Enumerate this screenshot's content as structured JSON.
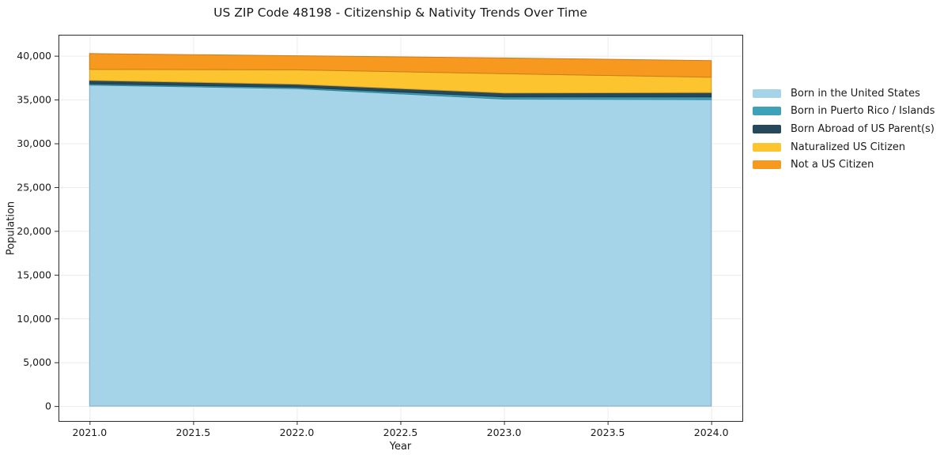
{
  "title": "US ZIP Code 48198 - Citizenship & Nativity Trends Over Time",
  "chart_data": {
    "type": "area",
    "stacked": true,
    "title": "US ZIP Code 48198 - Citizenship & Nativity Trends Over Time",
    "xlabel": "Year",
    "ylabel": "Population",
    "x": [
      2021,
      2022,
      2023,
      2024
    ],
    "series": [
      {
        "name": "Born in the United States",
        "color": "#A5D3E8",
        "values": [
          36650,
          36250,
          35050,
          35000
        ]
      },
      {
        "name": "Born in Puerto Rico / Islands",
        "color": "#3EA1BA",
        "values": [
          150,
          150,
          250,
          300
        ]
      },
      {
        "name": "Born Abroad of US Parent(s)",
        "color": "#25495B",
        "values": [
          400,
          350,
          450,
          500
        ]
      },
      {
        "name": "Naturalized US Citizen",
        "color": "#FCC42F",
        "values": [
          1250,
          1650,
          2200,
          1750
        ]
      },
      {
        "name": "Not a US Citizen",
        "color": "#F7991F",
        "values": [
          1800,
          1600,
          1800,
          1900
        ]
      }
    ],
    "x_ticks": [
      2021.0,
      2021.5,
      2022.0,
      2022.5,
      2023.0,
      2023.5,
      2024.0
    ],
    "y_ticks": [
      0,
      5000,
      10000,
      15000,
      20000,
      25000,
      30000,
      35000,
      40000
    ],
    "xlim": [
      2020.85,
      2024.15
    ],
    "ylim": [
      -1700,
      42400
    ],
    "grid": true,
    "legend_position": "right",
    "colors": {
      "grid": "#ececec",
      "spine": "#2b2b2b",
      "tick_label": "#1a1a1a"
    }
  }
}
